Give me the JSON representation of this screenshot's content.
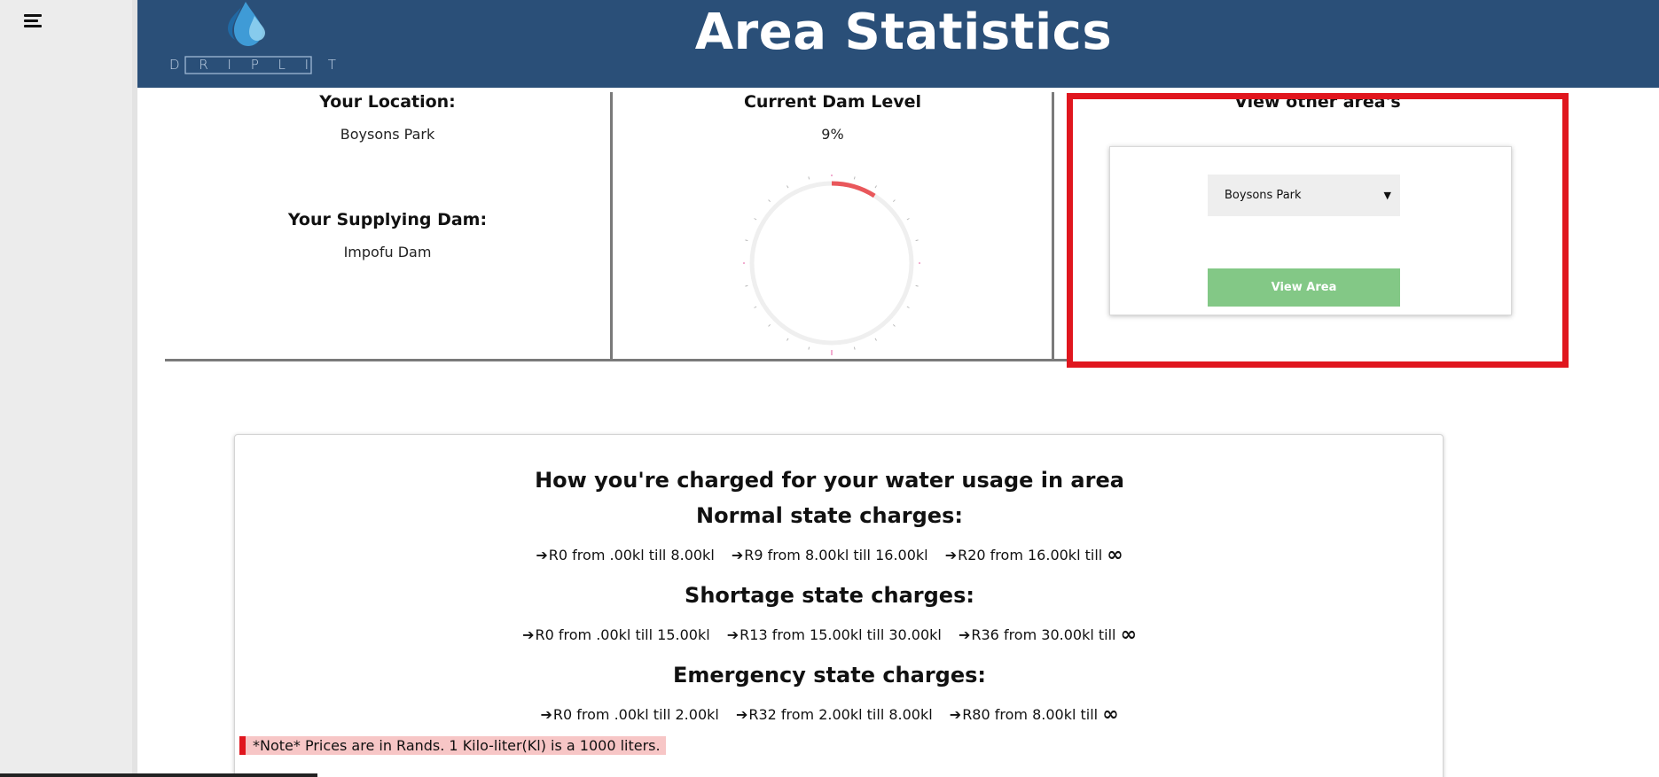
{
  "header": {
    "title": "Area Statistics",
    "logo_text": "DRIPLIT",
    "logo_letters": [
      "D",
      "R",
      "I",
      "P",
      "L",
      "I",
      "T"
    ],
    "color": "#2a4f78"
  },
  "sidebar": {
    "menu_icon": "hamburger-menu-icon"
  },
  "location": {
    "label": "Your Location:",
    "value": "Boysons Park"
  },
  "dam": {
    "label": "Your Supplying Dam:",
    "value": "Impofu Dam"
  },
  "dam_level": {
    "label": "Current Dam Level",
    "value": "9%",
    "fraction": 0.09
  },
  "other_areas": {
    "label": "View other area's",
    "selected": "Boysons Park",
    "button": "View Area",
    "highlight_color": "#e0161e",
    "button_color": "#83c886"
  },
  "charges": {
    "title": "How you're charged for your water usage in area",
    "states": [
      {
        "title": "Normal state charges:",
        "rates": [
          "R0 from .00kl till 8.00kl",
          "R9 from 8.00kl till 16.00kl",
          "R20 from 16.00kl till"
        ]
      },
      {
        "title": "Shortage state charges:",
        "rates": [
          "R0 from .00kl till 15.00kl",
          "R13 from 15.00kl till 30.00kl",
          "R36 from 30.00kl till"
        ]
      },
      {
        "title": "Emergency state charges:",
        "rates": [
          "R0 from .00kl till 2.00kl",
          "R32 from 2.00kl till 8.00kl",
          "R80 from 8.00kl till"
        ]
      }
    ],
    "arrow": "➔",
    "infinity": "∞",
    "note": "*Note* Prices are in Rands. 1 Kilo-liter(Kl) is a 1000 liters."
  }
}
